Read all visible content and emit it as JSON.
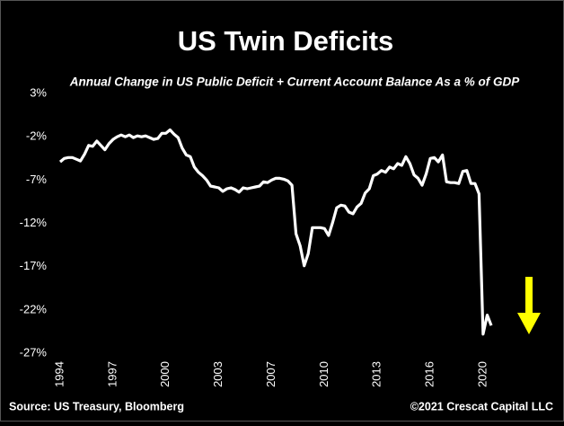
{
  "chart_data": {
    "type": "line",
    "title": "US Twin Deficits",
    "subtitle": "Annual Change in US Public Deficit + Current Account Balance As a % of GDP",
    "source": "Source: US Treasury, Bloomberg",
    "credit": "©2021 Crescat Capital LLC",
    "categories": [
      "1994",
      null,
      null,
      null,
      null,
      null,
      null,
      null,
      null,
      null,
      null,
      null,
      null,
      "1997",
      null,
      null,
      null,
      null,
      null,
      null,
      null,
      null,
      null,
      null,
      null,
      null,
      "2000",
      null,
      null,
      null,
      null,
      null,
      null,
      null,
      null,
      null,
      null,
      null,
      null,
      "2003",
      null,
      null,
      null,
      null,
      null,
      null,
      null,
      null,
      null,
      null,
      null,
      null,
      "2007",
      null,
      null,
      null,
      null,
      null,
      null,
      null,
      null,
      null,
      null,
      null,
      null,
      "2010",
      null,
      null,
      null,
      null,
      null,
      null,
      null,
      null,
      null,
      null,
      null,
      null,
      "2013",
      null,
      null,
      null,
      null,
      null,
      null,
      null,
      null,
      null,
      null,
      null,
      null,
      "2016",
      null,
      null,
      null,
      null,
      null,
      null,
      null,
      null,
      null,
      null,
      null,
      null,
      "2020",
      null,
      null
    ],
    "values": [
      -4.9,
      -4.5,
      -4.4,
      -4.4,
      -4.6,
      -4.8,
      -4.0,
      -3.0,
      -3.1,
      -2.5,
      -3.0,
      -3.5,
      -2.8,
      -2.3,
      -2.0,
      -1.8,
      -2.0,
      -1.8,
      -2.1,
      -1.9,
      -2.0,
      -1.9,
      -2.1,
      -2.3,
      -2.2,
      -1.6,
      -1.6,
      -1.2,
      -1.7,
      -2.1,
      -3.3,
      -4.1,
      -4.3,
      -5.5,
      -6.1,
      -6.5,
      -7.0,
      -7.7,
      -7.8,
      -7.9,
      -8.3,
      -8.0,
      -7.9,
      -8.1,
      -8.4,
      -7.9,
      -8.0,
      -7.9,
      -7.8,
      -7.7,
      -7.2,
      -7.3,
      -7.0,
      -6.8,
      -6.8,
      -6.9,
      -7.1,
      -7.6,
      -13.2,
      -14.6,
      -16.9,
      -15.5,
      -12.5,
      -12.5,
      -12.5,
      -12.6,
      -13.4,
      -11.9,
      -10.2,
      -9.9,
      -10.0,
      -10.7,
      -10.9,
      -10.1,
      -9.7,
      -8.5,
      -8.0,
      -6.5,
      -6.3,
      -5.9,
      -6.1,
      -5.5,
      -5.7,
      -5.1,
      -5.3,
      -4.3,
      -5.1,
      -6.4,
      -6.8,
      -7.6,
      -6.3,
      -4.5,
      -4.4,
      -4.9,
      -4.1,
      -7.2,
      -7.3,
      -7.3,
      -7.4,
      -6.0,
      -5.9,
      -7.4,
      -7.4,
      -8.6,
      -24.8,
      -22.6,
      -23.8
    ],
    "color": "#ffffff",
    "ylim": [
      -27,
      3
    ],
    "yticks": [
      {
        "value": 3,
        "label": "3%"
      },
      {
        "value": -2,
        "label": "-2%"
      },
      {
        "value": -7,
        "label": "-7%"
      },
      {
        "value": -12,
        "label": "-12%"
      },
      {
        "value": -17,
        "label": "-17%"
      },
      {
        "value": -22,
        "label": "-22%"
      },
      {
        "value": -27,
        "label": "-27%"
      }
    ],
    "grid": false
  }
}
